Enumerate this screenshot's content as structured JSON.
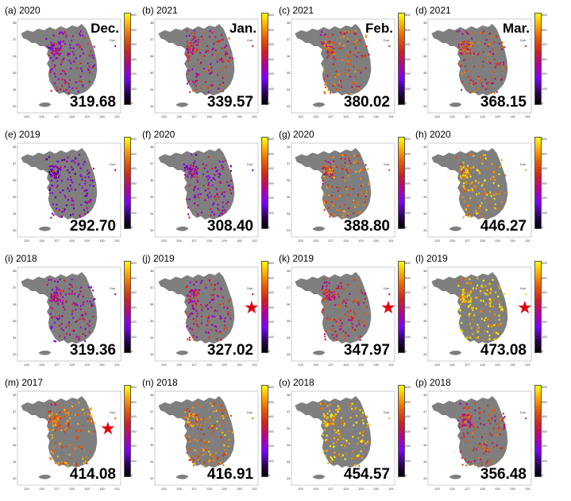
{
  "colorbar_ticks": [
    "600",
    "500",
    "400",
    "300",
    "200",
    "100",
    "0"
  ],
  "lon_ticks": [
    "125",
    "126",
    "127",
    "128",
    "129",
    "130",
    "131"
  ],
  "lat_ticks": [
    "38",
    "37",
    "36",
    "35",
    "34",
    "33"
  ],
  "ann_label": "Dok",
  "colors": {
    "land": "#7f7f7f",
    "star": "#e00010"
  },
  "panels": [
    {
      "label": "(a) 2020",
      "month": "Dec.",
      "value": "319.68",
      "star": false,
      "tone": 0.45
    },
    {
      "label": "(b) 2021",
      "month": "Jan.",
      "value": "339.57",
      "star": false,
      "tone": 0.55
    },
    {
      "label": "(c) 2021",
      "month": "Feb.",
      "value": "380.02",
      "star": false,
      "tone": 0.65
    },
    {
      "label": "(d) 2021",
      "month": "Mar.",
      "value": "368.15",
      "star": false,
      "tone": 0.62
    },
    {
      "label": "(e) 2019",
      "month": "",
      "value": "292.70",
      "star": false,
      "tone": 0.35
    },
    {
      "label": "(f) 2020",
      "month": "",
      "value": "308.40",
      "star": false,
      "tone": 0.42
    },
    {
      "label": "(g) 2020",
      "month": "",
      "value": "388.80",
      "star": false,
      "tone": 0.68
    },
    {
      "label": "(h) 2020",
      "month": "",
      "value": "446.27",
      "star": false,
      "tone": 0.85
    },
    {
      "label": "(i) 2018",
      "month": "",
      "value": "319.36",
      "star": false,
      "tone": 0.45
    },
    {
      "label": "(j) 2019",
      "month": "",
      "value": "327.02",
      "star": true,
      "tone": 0.5
    },
    {
      "label": "(k) 2019",
      "month": "",
      "value": "347.97",
      "star": true,
      "tone": 0.58
    },
    {
      "label": "(l) 2019",
      "month": "",
      "value": "473.08",
      "star": true,
      "tone": 0.92
    },
    {
      "label": "(m) 2017",
      "month": "",
      "value": "414.08",
      "star": true,
      "tone": 0.75
    },
    {
      "label": "(n) 2018",
      "month": "",
      "value": "416.91",
      "star": false,
      "tone": 0.76
    },
    {
      "label": "(o) 2018",
      "month": "",
      "value": "454.57",
      "star": false,
      "tone": 0.87
    },
    {
      "label": "(p) 2018",
      "month": "",
      "value": "356.48",
      "star": false,
      "tone": 0.6
    }
  ]
}
